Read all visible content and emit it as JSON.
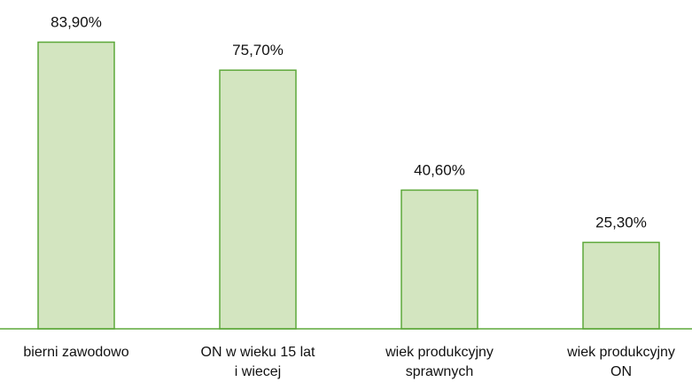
{
  "chart_data": {
    "type": "bar",
    "categories": [
      [
        "bierni zawodowo"
      ],
      [
        "ON w wieku 15 lat",
        "i wiecej"
      ],
      [
        "wiek produkcyjny",
        "sprawnych"
      ],
      [
        "wiek produkcyjny",
        "ON"
      ]
    ],
    "values": [
      83.9,
      75.7,
      40.6,
      25.3
    ],
    "data_labels": [
      "83,90%",
      "75,70%",
      "40,60%",
      "25,30%"
    ],
    "title": "",
    "xlabel": "",
    "ylabel": "",
    "ylim": [
      0,
      100
    ],
    "grid": false,
    "legend": "none",
    "colors": {
      "bar_fill": "#d3e5c0",
      "bar_stroke": "#5da83a",
      "axis": "#5da83a"
    }
  }
}
